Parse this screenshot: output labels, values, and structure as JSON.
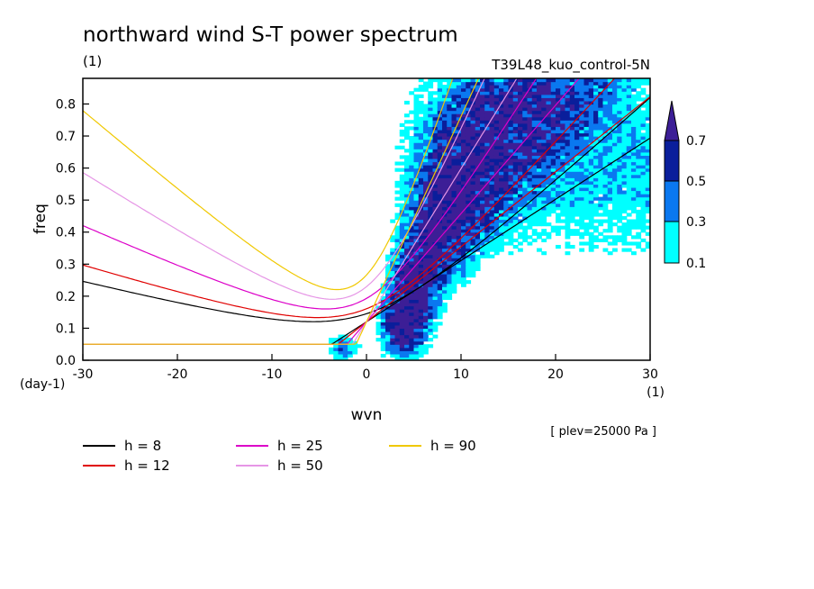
{
  "chart_data": {
    "type": "heatmap",
    "title": "northward wind S-T power spectrum",
    "subtitle_left": "(1)",
    "subtitle_right": "T39L48_kuo_control-5N",
    "xlabel": "wvn",
    "ylabel": "freq",
    "x_unit": "(1)",
    "y_unit": "(day-1)",
    "level_note": "[ plev=25000 Pa ]",
    "xlim": [
      -30,
      30
    ],
    "ylim": [
      0,
      0.88
    ],
    "x_ticks": [
      -30,
      -20,
      -10,
      0,
      10,
      20,
      30
    ],
    "y_ticks": [
      0.0,
      0.1,
      0.2,
      0.3,
      0.4,
      0.5,
      0.6,
      0.7,
      0.8
    ],
    "x_tick_labels": [
      "-30",
      "-20",
      "-10",
      "0",
      "10",
      "20",
      "30"
    ],
    "y_tick_labels": [
      "0.0",
      "0.1",
      "0.2",
      "0.3",
      "0.4",
      "0.5",
      "0.6",
      "0.7",
      "0.8"
    ],
    "colorbar": {
      "levels": [
        0.1,
        0.3,
        0.5,
        0.7
      ],
      "labels": [
        "0.1",
        "0.3",
        "0.5",
        "0.7"
      ],
      "colors": [
        "#00ffff",
        "#0a78f0",
        "#0a1e9b",
        "#3c1e96"
      ]
    },
    "contour_regions": [
      {
        "level": 0.7,
        "x": [
          2,
          7
        ],
        "y": [
          0.03,
          0.25
        ],
        "description_level": "highest"
      },
      {
        "level": 0.5,
        "x": [
          1.5,
          8
        ],
        "y": [
          0.02,
          0.5
        ]
      },
      {
        "level": 0.3,
        "x": [
          1,
          30
        ],
        "y": [
          0.02,
          0.88
        ]
      },
      {
        "level": 0.1,
        "x": [
          -6,
          30
        ],
        "y": [
          0.0,
          0.88
        ]
      }
    ],
    "dispersion_curves": [
      {
        "name": "h = 8",
        "h": 8,
        "color": "#000000"
      },
      {
        "name": "h = 12",
        "h": 12,
        "color": "#e00000"
      },
      {
        "name": "h = 25",
        "h": 25,
        "color": "#dc00c8"
      },
      {
        "name": "h = 50",
        "h": 50,
        "color": "#e696e6"
      },
      {
        "name": "h = 90",
        "h": 90,
        "color": "#f0c800"
      }
    ],
    "legend": [
      {
        "label": "h =  8",
        "color": "#000000"
      },
      {
        "label": "h = 12",
        "color": "#e00000"
      },
      {
        "label": "h = 25",
        "color": "#dc00c8"
      },
      {
        "label": "h = 50",
        "color": "#e696e6"
      },
      {
        "label": "h = 90",
        "color": "#f0c800"
      }
    ],
    "grid": false,
    "legend_placement": "bottom-left"
  }
}
